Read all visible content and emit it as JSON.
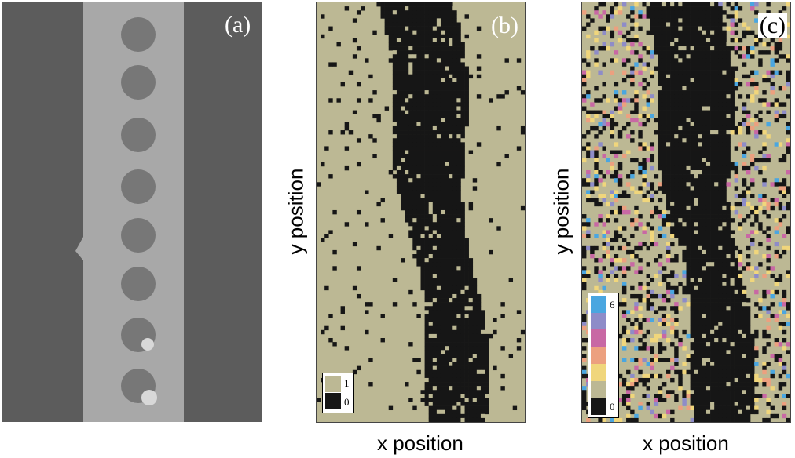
{
  "panels": {
    "a": {
      "label": "(a)"
    },
    "b": {
      "label": "(b)"
    },
    "c": {
      "label": "(c)"
    }
  },
  "axes": {
    "b": {
      "xlabel": "x position",
      "ylabel": "y position"
    },
    "c": {
      "xlabel": "x position",
      "ylabel": "y position"
    }
  },
  "legend_b": {
    "top": "1",
    "bottom": "0"
  },
  "legend_c": {
    "top": "6",
    "bottom": "0"
  },
  "colors": {
    "beige": "#bcb894",
    "black": "#161616",
    "yellow": "#f0d67c",
    "salmon": "#eca07f",
    "magenta": "#c868a4",
    "purple": "#8e8cc8",
    "blue": "#4aa6e0",
    "sem_dark": "#5c5c5c",
    "sem_light": "#a8a8a8",
    "sem_dot": "#777777"
  },
  "chart_data": [
    {
      "type": "heatmap",
      "title": "(b)",
      "xlabel": "x position",
      "ylabel": "y position",
      "values_legend": [
        "0",
        "1"
      ]
    },
    {
      "type": "heatmap",
      "title": "(c)",
      "xlabel": "x position",
      "ylabel": "y position",
      "values_legend": [
        "0",
        "6"
      ]
    }
  ]
}
